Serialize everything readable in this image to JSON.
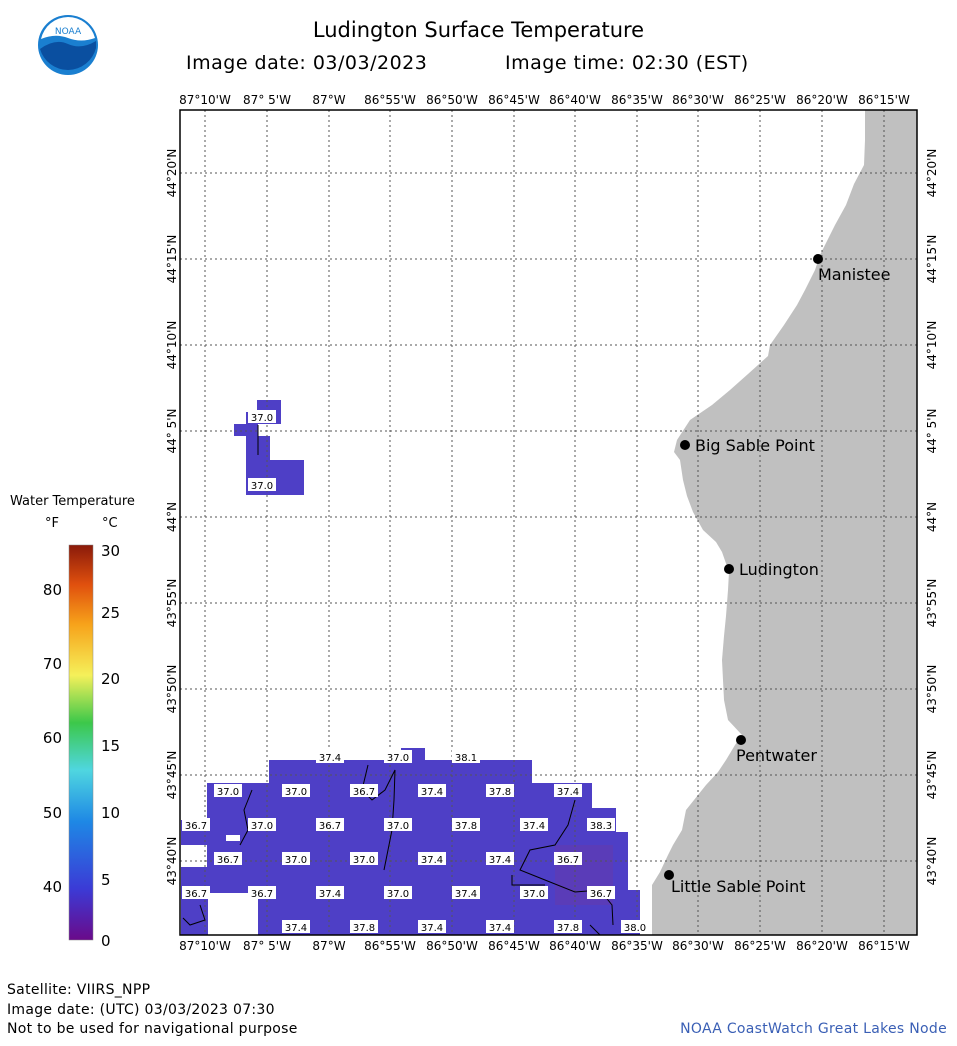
{
  "header": {
    "title": "Ludington Surface Temperature",
    "image_date": "Image date: 03/03/2023",
    "image_time": "Image time: 02:30 (EST)",
    "logo_text": "NOAA"
  },
  "longitude_labels": [
    "87°10'W",
    "87° 5'W",
    "87°W",
    "86°55'W",
    "86°50'W",
    "86°45'W",
    "86°40'W",
    "86°35'W",
    "86°30'W",
    "86°25'W",
    "86°20'W",
    "86°15'W"
  ],
  "latitude_labels": [
    "44°20'N",
    "44°15'N",
    "44°10'N",
    "44° 5'N",
    "44°N",
    "43°55'N",
    "43°50'N",
    "43°45'N",
    "43°40'N"
  ],
  "places": [
    {
      "name": "Manistee"
    },
    {
      "name": "Big Sable Point"
    },
    {
      "name": "Ludington"
    },
    {
      "name": "Pentwater"
    },
    {
      "name": "Little Sable Point"
    }
  ],
  "legend": {
    "title": "Water Temperature",
    "unit_f": "°F",
    "unit_c": "°C",
    "f_ticks": [
      "80",
      "70",
      "60",
      "50",
      "40"
    ],
    "c_ticks": [
      "30",
      "25",
      "20",
      "15",
      "10",
      "5",
      "0"
    ]
  },
  "temperature_labels": {
    "north": [
      "37.0",
      "37.0"
    ],
    "row1": [
      "37.4",
      "37.0",
      "38.1"
    ],
    "row2": [
      "37.0",
      "37.0",
      "36.7",
      "37.4",
      "37.8",
      "37.4"
    ],
    "row3": [
      "36.7",
      "37.0",
      "36.7",
      "37.0",
      "37.8",
      "37.4",
      "38.3"
    ],
    "row4": [
      "36.7",
      "37.0",
      "37.0",
      "37.4",
      "37.4",
      "36.7"
    ],
    "row5": [
      "36.7",
      "36.7",
      "37.4",
      "37.0",
      "37.4",
      "37.0",
      "36.7"
    ],
    "row6": [
      "37.4",
      "37.8",
      "37.4",
      "37.4",
      "37.8",
      "38.0"
    ]
  },
  "colors": {
    "land": "#c0c0c0",
    "water_temp": "#4e3fc6",
    "water_temp_warm": "#5a3cb8",
    "logo_blue": "#1a7fd0"
  },
  "footer": {
    "satellite": "Satellite: VIIRS_NPP",
    "utc_date": "Image date: (UTC) 03/03/2023  07:30",
    "disclaimer": "Not to be used for navigational purpose",
    "credit": "NOAA CoastWatch Great Lakes Node"
  }
}
